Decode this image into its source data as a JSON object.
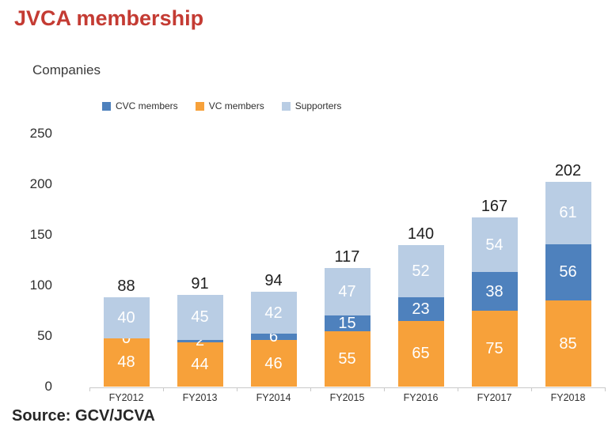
{
  "header": {
    "title": "JVCA membership"
  },
  "chart": {
    "axis_title": "Companies"
  },
  "legend": {
    "position": "top",
    "items": [
      {
        "label": "CVC members",
        "color": "#4e81bd"
      },
      {
        "label": "VC members",
        "color": "#f7a13a"
      },
      {
        "label": "Supporters",
        "color": "#b9cde4"
      }
    ]
  },
  "chart_data": {
    "type": "bar",
    "stacked": true,
    "title": "JVCA membership",
    "ylabel": "Companies",
    "xlabel": "",
    "categories": [
      "FY2012",
      "FY2013",
      "FY2014",
      "FY2015",
      "FY2016",
      "FY2017",
      "FY2018"
    ],
    "series": [
      {
        "name": "VC members",
        "color": "#f7a13a",
        "values": [
          48,
          44,
          46,
          55,
          65,
          75,
          85
        ]
      },
      {
        "name": "CVC members",
        "color": "#4e81bd",
        "values": [
          0,
          2,
          6,
          15,
          23,
          38,
          56
        ]
      },
      {
        "name": "Supporters",
        "color": "#b9cde4",
        "values": [
          40,
          45,
          42,
          47,
          52,
          54,
          61
        ]
      }
    ],
    "totals": [
      88,
      91,
      94,
      117,
      140,
      167,
      202
    ],
    "y_ticks": [
      0,
      50,
      100,
      150,
      200,
      250
    ],
    "ylim": [
      0,
      250
    ],
    "grid": false,
    "legend_position": "top"
  },
  "colors": {
    "title_red": "#c43b33",
    "axis_gray": "#c9c9c9",
    "text_dark": "#262626"
  },
  "footer": {
    "source": "Source: GCV/JCVA"
  }
}
